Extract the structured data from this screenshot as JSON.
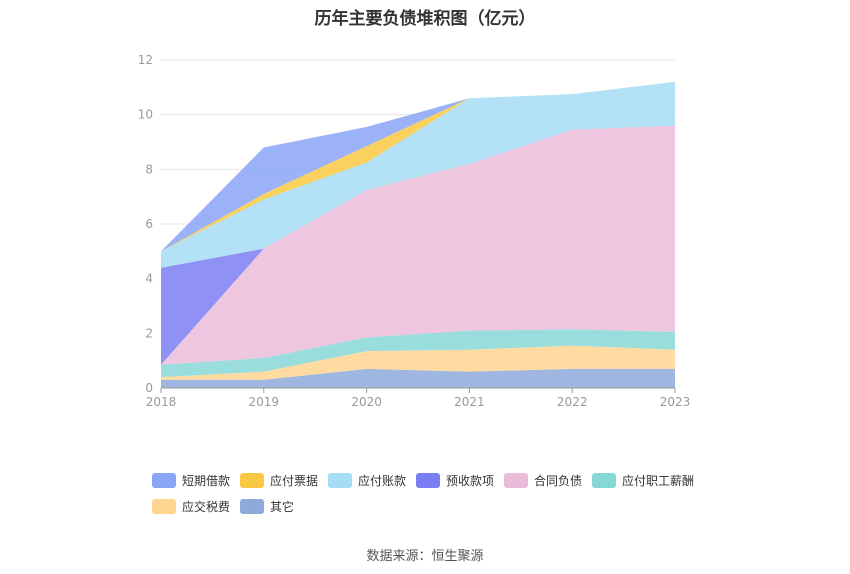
{
  "chart_data": {
    "type": "area",
    "stacked": true,
    "title": "历年主要负债堆积图（亿元）",
    "x": [
      "2018",
      "2019",
      "2020",
      "2021",
      "2022",
      "2023"
    ],
    "ylim": [
      0,
      12
    ],
    "yticks": [
      "0",
      "2",
      "4",
      "6",
      "8",
      "10",
      "12"
    ],
    "grid": true,
    "legend_position": "bottom",
    "series": [
      {
        "name": "其它",
        "color": "#8eaadb",
        "values": [
          0.3,
          0.3,
          0.7,
          0.6,
          0.7,
          0.7
        ]
      },
      {
        "name": "应交税费",
        "color": "#ffd591",
        "values": [
          0.1,
          0.3,
          0.65,
          0.8,
          0.85,
          0.7
        ]
      },
      {
        "name": "应付职工薪酬",
        "color": "#87d7d7",
        "values": [
          0.45,
          0.5,
          0.5,
          0.7,
          0.6,
          0.65
        ]
      },
      {
        "name": "合同负债",
        "color": "#ebbcd9",
        "values": [
          0.0,
          4.0,
          5.4,
          6.1,
          7.3,
          7.55
        ]
      },
      {
        "name": "预收款项",
        "color": "#7b7ef2",
        "values": [
          3.55,
          0.0,
          0.0,
          0.0,
          0.0,
          0.0
        ]
      },
      {
        "name": "应付账款",
        "color": "#a6dcf5",
        "values": [
          0.6,
          1.8,
          1.0,
          2.4,
          1.3,
          1.6
        ]
      },
      {
        "name": "应付票据",
        "color": "#f9c843",
        "values": [
          0.0,
          0.2,
          0.6,
          0.0,
          0.0,
          0.0
        ]
      },
      {
        "name": "短期借款",
        "color": "#8aa5f7",
        "values": [
          0.0,
          1.7,
          0.7,
          0.0,
          0.0,
          0.0
        ]
      }
    ],
    "legend_order": [
      "短期借款",
      "应付票据",
      "应付账款",
      "预收款项",
      "合同负债",
      "应付职工薪酬",
      "应交税费",
      "其它"
    ]
  },
  "source": "数据来源：恒生聚源"
}
